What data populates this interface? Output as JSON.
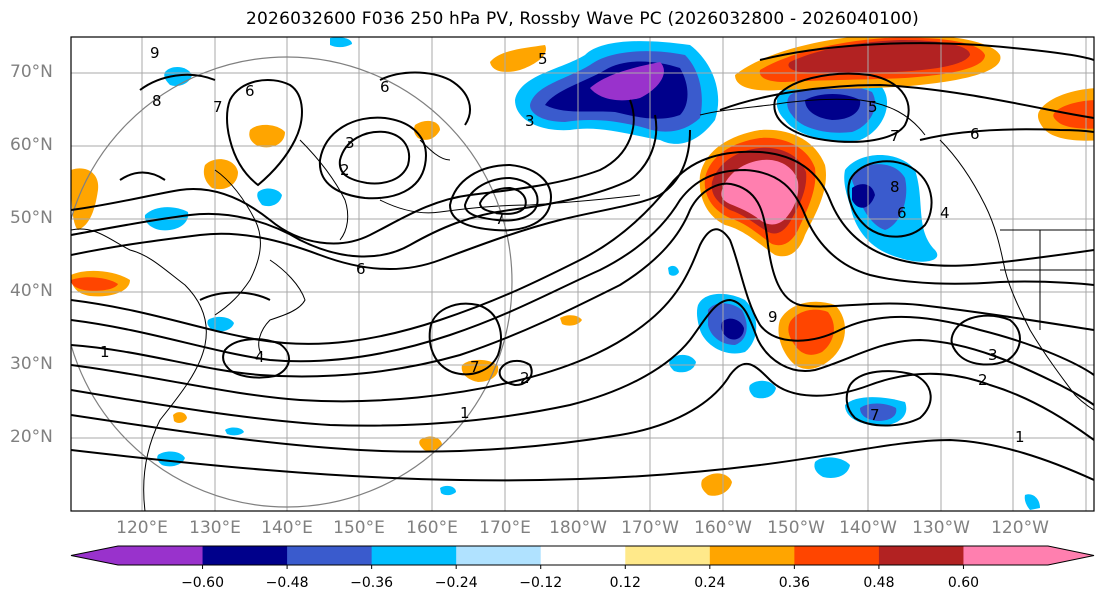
{
  "title": "2026032600 F036 250 hPa PV, Rossby Wave PC (2026032800 - 2026040100)",
  "lat_labels": [
    "70°N",
    "60°N",
    "50°N",
    "40°N",
    "30°N",
    "20°N"
  ],
  "lon_labels": [
    "120°E",
    "130°E",
    "140°E",
    "150°E",
    "160°E",
    "170°E",
    "180°W",
    "170°W",
    "160°W",
    "150°W",
    "140°W",
    "130°W",
    "120°W"
  ],
  "contour_labels": [
    "9",
    "8",
    "7",
    "6",
    "5",
    "4",
    "3",
    "2",
    "1"
  ],
  "colorbar": {
    "colors": [
      "#9932cc",
      "#00008b",
      "#3a5bcd",
      "#00bfff",
      "#b0e2ff",
      "#ffffff",
      "#ffe98a",
      "#ffa500",
      "#ff4500",
      "#b22222",
      "#ff7faf"
    ],
    "ticks": [
      "−0.60",
      "−0.48",
      "−0.36",
      "−0.24",
      "−0.12",
      "0.12",
      "0.24",
      "0.36",
      "0.48",
      "0.60"
    ]
  },
  "styles": {
    "contour_color": "#000000",
    "axis_label_color": "#808080",
    "grid_color": "#a9a9a9"
  }
}
